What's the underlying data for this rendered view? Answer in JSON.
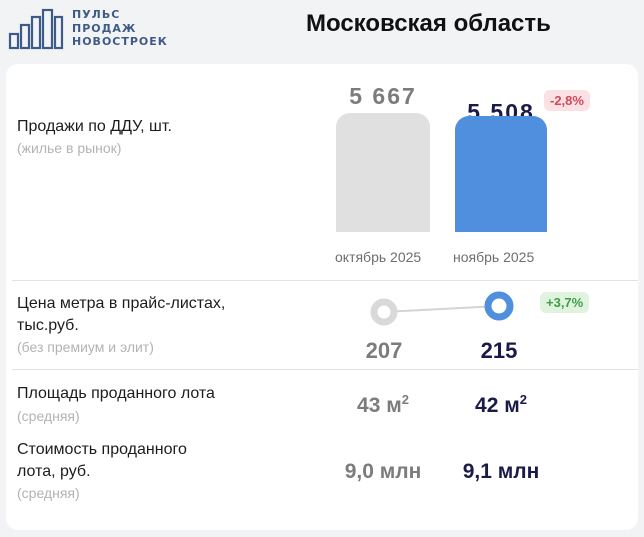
{
  "logo": {
    "line1": "ПУЛЬС",
    "line2": "ПРОДАЖ",
    "line3": "НОВОСТРОЕК",
    "icon": "city-buildings-icon",
    "color": "#3e5a86"
  },
  "region": "Московская область",
  "rows": {
    "sales": {
      "label": "Продажи по ДДУ, шт.",
      "sub": "(жилье в рынок)",
      "badge": "-2,8%",
      "oct_value": "5 667",
      "nov_value": "5 508"
    },
    "price": {
      "label1": "Цена метра в прайс-листах,",
      "label2": "тыс.руб.",
      "sub": "(без премиум и элит)",
      "badge": "+3,7%",
      "oct_value": "207",
      "nov_value": "215"
    },
    "area": {
      "label": "Площадь проданного лота",
      "sub": "(средняя)",
      "oct_value": "43 м",
      "nov_value": "42 м",
      "unit_sup": "2"
    },
    "cost": {
      "label1": "Стоимость проданного",
      "label2": "лота, руб.",
      "sub": "(средняя)",
      "oct_value": "9,0 млн",
      "nov_value": "9,1 млн"
    }
  },
  "months": {
    "oct": "октябрь 2025",
    "nov": "ноябрь 2025"
  },
  "colors": {
    "previous": "#e0e0e0",
    "current": "#4f8fde",
    "negative": "#d1485a",
    "positive": "#3f9e47"
  },
  "chart_data": [
    {
      "type": "bar",
      "title": "Продажи по ДДУ, шт.",
      "categories": [
        "октябрь 2025",
        "ноябрь 2025"
      ],
      "values": [
        5667,
        5508
      ],
      "change": "-2,8%",
      "ylim": [
        0,
        5700
      ]
    },
    {
      "type": "line",
      "title": "Цена метра в прайс-листах, тыс.руб.",
      "categories": [
        "октябрь 2025",
        "ноябрь 2025"
      ],
      "values": [
        207,
        215
      ],
      "change": "+3,7%"
    },
    {
      "type": "table",
      "columns": [
        "октябрь 2025",
        "ноябрь 2025"
      ],
      "rows": [
        {
          "label": "Площадь проданного лота",
          "values": [
            "43 м²",
            "42 м²"
          ]
        },
        {
          "label": "Стоимость проданного лота, руб.",
          "values": [
            "9,0 млн",
            "9,1 млн"
          ]
        }
      ]
    }
  ]
}
